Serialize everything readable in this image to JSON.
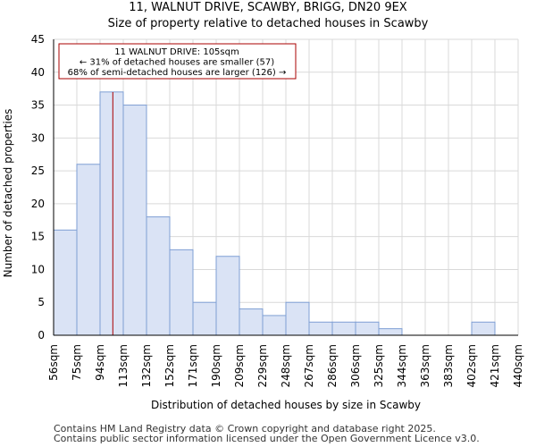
{
  "title": "11, WALNUT DRIVE, SCAWBY, BRIGG, DN20 9EX",
  "subtitle": "Size of property relative to detached houses in Scawby",
  "footer": {
    "line1": "Contains HM Land Registry data © Crown copyright and database right 2025.",
    "line2": "Contains public sector information licensed under the Open Government Licence v3.0."
  },
  "colors": {
    "bar_fill": "#dae3f5",
    "bar_stroke": "#7f9fd4",
    "marker": "#aa0000",
    "grid": "#d9d9d9"
  },
  "chart_data": {
    "type": "bar",
    "title": "11, WALNUT DRIVE, SCAWBY, BRIGG, DN20 9EX",
    "subtitle": "Size of property relative to detached houses in Scawby",
    "xlabel": "Distribution of detached houses by size in Scawby",
    "ylabel": "Number of detached properties",
    "ylim": [
      0,
      45
    ],
    "yticks": [
      0,
      5,
      10,
      15,
      20,
      25,
      30,
      35,
      40,
      45
    ],
    "grid": true,
    "x_tick_labels": [
      "56sqm",
      "75sqm",
      "94sqm",
      "113sqm",
      "132sqm",
      "152sqm",
      "171sqm",
      "190sqm",
      "209sqm",
      "229sqm",
      "248sqm",
      "267sqm",
      "286sqm",
      "306sqm",
      "325sqm",
      "344sqm",
      "363sqm",
      "383sqm",
      "402sqm",
      "421sqm",
      "440sqm"
    ],
    "values": [
      16,
      26,
      37,
      35,
      18,
      13,
      5,
      12,
      4,
      3,
      5,
      2,
      2,
      2,
      1,
      0,
      0,
      0,
      2,
      0
    ],
    "marker": {
      "value_sqm": 105,
      "position_bins": 2.55
    },
    "annotation": {
      "line1": "11 WALNUT DRIVE: 105sqm",
      "line2": "← 31% of detached houses are smaller (57)",
      "line3": "68% of semi-detached houses are larger (126) →"
    }
  }
}
